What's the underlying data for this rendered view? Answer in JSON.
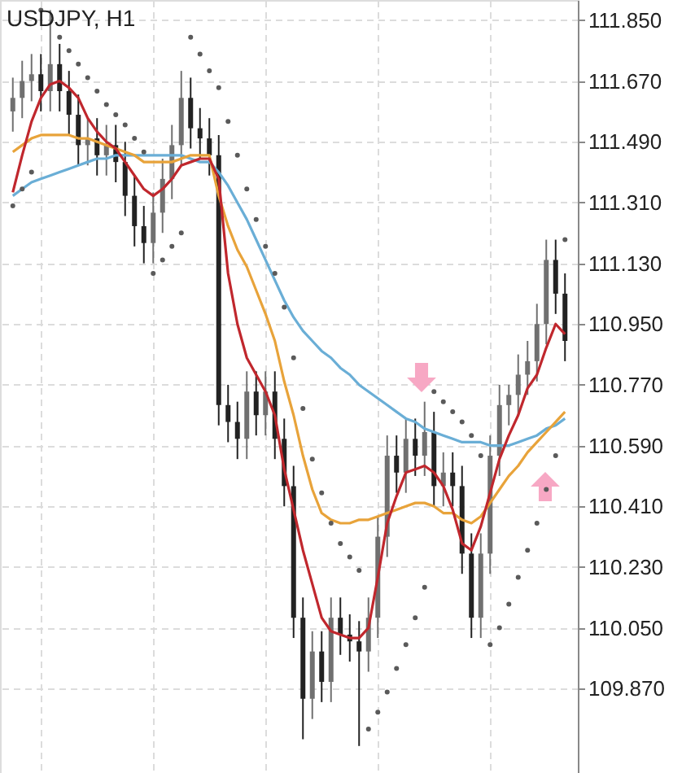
{
  "chart_data": {
    "type": "candlestick",
    "title": "USDJPY, H1",
    "categories": [
      null,
      null,
      null,
      null,
      null,
      null,
      null,
      null,
      null,
      null,
      null,
      null,
      null,
      null,
      null,
      null,
      null,
      null,
      null,
      null,
      null,
      null,
      null,
      null,
      null,
      null,
      null,
      null,
      null,
      null,
      null,
      null,
      null,
      null,
      null,
      null,
      null,
      null,
      null,
      null,
      null,
      null,
      null,
      null,
      null,
      null,
      null,
      null,
      null,
      null,
      null,
      null,
      null,
      null,
      null,
      null,
      null,
      null,
      null,
      null
    ],
    "ohlc": [
      [
        111.58,
        111.68,
        111.52,
        111.62
      ],
      [
        111.62,
        111.73,
        111.56,
        111.67
      ],
      [
        111.67,
        111.75,
        111.61,
        111.69
      ],
      [
        111.69,
        111.75,
        111.58,
        111.64
      ],
      [
        111.64,
        111.88,
        111.58,
        111.72
      ],
      [
        111.72,
        111.78,
        111.58,
        111.64
      ],
      [
        111.64,
        111.7,
        111.51,
        111.57
      ],
      [
        111.57,
        111.63,
        111.42,
        111.48
      ],
      [
        111.48,
        111.56,
        111.42,
        111.5
      ],
      [
        111.5,
        111.56,
        111.39,
        111.45
      ],
      [
        111.45,
        111.54,
        111.39,
        111.48
      ],
      [
        111.48,
        111.54,
        111.37,
        111.43
      ],
      [
        111.43,
        111.49,
        111.27,
        111.33
      ],
      [
        111.33,
        111.39,
        111.18,
        111.24
      ],
      [
        111.24,
        111.3,
        111.13,
        111.19
      ],
      [
        111.19,
        111.34,
        111.13,
        111.28
      ],
      [
        111.28,
        111.44,
        111.22,
        111.38
      ],
      [
        111.38,
        111.54,
        111.32,
        111.48
      ],
      [
        111.48,
        111.7,
        111.42,
        111.62
      ],
      [
        111.62,
        111.68,
        111.47,
        111.53
      ],
      [
        111.53,
        111.59,
        111.44,
        111.5
      ],
      [
        111.5,
        111.56,
        111.39,
        111.45
      ],
      [
        111.45,
        111.51,
        110.65,
        110.71
      ],
      [
        110.71,
        110.77,
        110.6,
        110.66
      ],
      [
        110.66,
        110.72,
        110.55,
        110.61
      ],
      [
        110.61,
        110.81,
        110.55,
        110.75
      ],
      [
        110.75,
        110.81,
        110.62,
        110.68
      ],
      [
        110.68,
        110.81,
        110.62,
        110.75
      ],
      [
        110.75,
        110.81,
        110.55,
        110.61
      ],
      [
        110.61,
        110.67,
        110.41,
        110.47
      ],
      [
        110.47,
        110.53,
        110.02,
        110.08
      ],
      [
        110.08,
        110.14,
        109.72,
        109.84
      ],
      [
        109.84,
        110.04,
        109.78,
        109.98
      ],
      [
        109.98,
        110.04,
        109.83,
        109.89
      ],
      [
        109.89,
        110.14,
        109.83,
        110.08
      ],
      [
        110.08,
        110.14,
        109.97,
        110.03
      ],
      [
        110.03,
        110.09,
        109.95,
        110.01
      ],
      [
        110.01,
        110.07,
        109.7,
        109.98
      ],
      [
        109.98,
        110.14,
        109.92,
        110.08
      ],
      [
        110.08,
        110.38,
        110.02,
        110.32
      ],
      [
        110.32,
        110.62,
        110.26,
        110.56
      ],
      [
        110.56,
        110.62,
        110.45,
        110.51
      ],
      [
        110.51,
        110.67,
        110.45,
        110.61
      ],
      [
        110.61,
        110.67,
        110.5,
        110.56
      ],
      [
        110.56,
        110.72,
        110.5,
        110.63
      ],
      [
        110.63,
        110.69,
        110.41,
        110.47
      ],
      [
        110.47,
        110.57,
        110.41,
        110.51
      ],
      [
        110.51,
        110.57,
        110.41,
        110.47
      ],
      [
        110.47,
        110.53,
        110.21,
        110.27
      ],
      [
        110.27,
        110.33,
        110.02,
        110.08
      ],
      [
        110.08,
        110.33,
        110.02,
        110.27
      ],
      [
        110.27,
        110.62,
        110.21,
        110.56
      ],
      [
        110.56,
        110.77,
        110.5,
        110.71
      ],
      [
        110.71,
        110.77,
        110.65,
        110.74
      ],
      [
        110.74,
        110.86,
        110.68,
        110.8
      ],
      [
        110.8,
        110.9,
        110.74,
        110.84
      ],
      [
        110.84,
        111.01,
        110.78,
        110.95
      ],
      [
        110.95,
        111.2,
        110.89,
        111.14
      ],
      [
        111.14,
        111.2,
        110.98,
        111.04
      ],
      [
        111.04,
        111.1,
        110.84,
        110.9
      ]
    ],
    "series": [
      {
        "type": "line",
        "color": "#6aaed6",
        "marker": "none",
        "values": [
          111.33,
          111.35,
          111.37,
          111.38,
          111.39,
          111.4,
          111.41,
          111.42,
          111.43,
          111.44,
          111.44,
          111.45,
          111.45,
          111.45,
          111.45,
          111.45,
          111.45,
          111.45,
          111.45,
          111.44,
          111.43,
          111.43,
          111.4,
          111.36,
          111.31,
          111.26,
          111.2,
          111.14,
          111.08,
          111.02,
          110.97,
          110.93,
          110.9,
          110.87,
          110.85,
          110.82,
          110.8,
          110.77,
          110.75,
          110.73,
          110.71,
          110.69,
          110.67,
          110.66,
          110.64,
          110.63,
          110.62,
          110.61,
          110.6,
          110.6,
          110.6,
          110.59,
          110.59,
          110.59,
          110.6,
          110.61,
          110.62,
          110.64,
          110.65,
          110.67
        ]
      },
      {
        "type": "line",
        "color": "#e8a33a",
        "marker": "none",
        "values": [
          111.46,
          111.48,
          111.5,
          111.51,
          111.51,
          111.51,
          111.51,
          111.5,
          111.5,
          111.49,
          111.48,
          111.47,
          111.46,
          111.45,
          111.43,
          111.43,
          111.43,
          111.43,
          111.44,
          111.45,
          111.45,
          111.45,
          111.33,
          111.24,
          111.17,
          111.12,
          111.05,
          110.98,
          110.9,
          110.78,
          110.68,
          110.56,
          110.46,
          110.39,
          110.37,
          110.36,
          110.36,
          110.37,
          110.37,
          110.38,
          110.39,
          110.4,
          110.41,
          110.42,
          110.42,
          110.41,
          110.39,
          110.39,
          110.37,
          110.36,
          110.38,
          110.42,
          110.46,
          110.5,
          110.53,
          110.57,
          110.6,
          110.63,
          110.66,
          110.69
        ]
      },
      {
        "type": "line",
        "color": "#c0272d",
        "marker": "none",
        "values": [
          111.34,
          111.45,
          111.55,
          111.62,
          111.66,
          111.67,
          111.65,
          111.62,
          111.56,
          111.52,
          111.49,
          111.47,
          111.43,
          111.39,
          111.35,
          111.33,
          111.35,
          111.38,
          111.42,
          111.43,
          111.44,
          111.44,
          111.38,
          111.1,
          110.95,
          110.85,
          110.8,
          110.75,
          110.68,
          110.52,
          110.4,
          110.28,
          110.18,
          110.08,
          110.04,
          110.03,
          110.02,
          110.02,
          110.05,
          110.2,
          110.36,
          110.44,
          110.51,
          110.52,
          110.53,
          110.51,
          110.47,
          110.4,
          110.3,
          110.28,
          110.35,
          110.45,
          110.55,
          110.62,
          110.68,
          110.76,
          110.8,
          110.88,
          110.95,
          110.92
        ]
      },
      {
        "type": "scatter",
        "color": "#5a5a5a",
        "marker": "circle",
        "values": [
          111.3,
          111.35,
          111.4,
          111.88,
          null,
          111.8,
          111.76,
          111.72,
          111.68,
          111.64,
          111.6,
          111.57,
          111.54,
          111.5,
          111.46,
          111.1,
          111.14,
          111.18,
          111.22,
          111.8,
          111.75,
          111.7,
          111.65,
          111.55,
          111.45,
          111.35,
          111.26,
          111.18,
          111.1,
          111.0,
          110.85,
          110.7,
          110.55,
          110.45,
          110.36,
          110.3,
          110.26,
          110.22,
          109.75,
          109.8,
          109.86,
          109.93,
          110.0,
          110.08,
          110.17,
          110.75,
          110.72,
          110.69,
          110.66,
          110.62,
          110.56,
          110.0,
          110.05,
          110.12,
          110.2,
          110.28,
          110.36,
          110.46,
          110.56,
          111.2
        ]
      }
    ],
    "ylim": [
      109.62,
      111.91
    ],
    "yticks": [
      {
        "value": 111.85,
        "label": "111.850"
      },
      {
        "value": 111.67,
        "label": "111.670"
      },
      {
        "value": 111.49,
        "label": "111.490"
      },
      {
        "value": 111.31,
        "label": "111.310"
      },
      {
        "value": 111.13,
        "label": "111.130"
      },
      {
        "value": 110.95,
        "label": "110.950"
      },
      {
        "value": 110.77,
        "label": "110.770"
      },
      {
        "value": 110.59,
        "label": "110.590"
      },
      {
        "value": 110.41,
        "label": "110.410"
      },
      {
        "value": 110.23,
        "label": "110.230"
      },
      {
        "value": 110.05,
        "label": "110.050"
      },
      {
        "value": 109.87,
        "label": "109.870"
      }
    ],
    "grid": true,
    "tick_labels": "y"
  }
}
